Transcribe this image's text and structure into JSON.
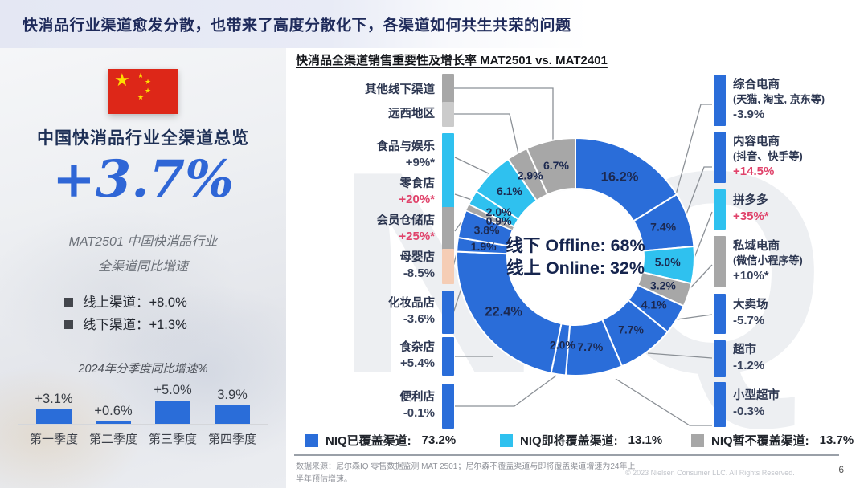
{
  "header": {
    "title": "快消品行业渠道愈发分散，也带来了高度分散化下，各渠道如何共生共荣的问题"
  },
  "watermark": "NIQ",
  "left_panel": {
    "flag_icon": "china-flag-icon",
    "heading": "中国快消品行业全渠道总览",
    "total_growth": "+3.7%",
    "subtitle_line1": "MAT2501 中国快消品行业",
    "subtitle_line2": "全渠道同比增速",
    "bullets": [
      {
        "label": "线上渠道：",
        "value": "+8.0%"
      },
      {
        "label": "线下渠道：",
        "value": "+1.3%"
      }
    ],
    "quarterly_title": "2024年分季度同比增速%"
  },
  "chart_title": "快消品全渠道销售重要性及增长率 MAT2501 vs. MAT2401",
  "chart_data": [
    {
      "type": "bar",
      "title": "2024年分季度同比增速%",
      "categories": [
        "第一季度",
        "第二季度",
        "第三季度",
        "第四季度"
      ],
      "values": [
        3.1,
        0.6,
        5.0,
        3.9
      ],
      "value_labels": [
        "+3.1%",
        "+0.6%",
        "+5.0%",
        "3.9%"
      ],
      "bar_color": "#2a6dd9",
      "xlabel": "",
      "ylabel": ""
    },
    {
      "type": "pie",
      "subtype": "donut",
      "title": "快消品全渠道销售重要性及增长率 MAT2501 vs. MAT2401",
      "center_lines": [
        "线下 Offline: 68%",
        "线上 Online: 32%"
      ],
      "unit": "%",
      "colors": {
        "covered": "#2a6dd9",
        "upcoming": "#2fc1ef",
        "uncovered": "#a7a7a7",
        "accent_growth": "#e0436b"
      },
      "slices": [
        {
          "name": "综合电商",
          "sub": "(天猫, 淘宝, 京东等)",
          "share": 16.2,
          "share_label": "16.2%",
          "growth": "-3.9%",
          "growth_accent": false,
          "group": "covered"
        },
        {
          "name": "内容电商",
          "sub": "(抖音、快手等)",
          "share": 7.4,
          "share_label": "7.4%",
          "growth": "+14.5%",
          "growth_accent": true,
          "group": "covered"
        },
        {
          "name": "拼多多",
          "share": 5.0,
          "share_label": "5.0%",
          "growth": "+35%*",
          "growth_accent": true,
          "group": "upcoming"
        },
        {
          "name": "私域电商",
          "sub": "(微信小程序等)",
          "share": 3.2,
          "share_label": "3.2%",
          "growth": "+10%*",
          "growth_accent": false,
          "group": "uncovered"
        },
        {
          "name": "大卖场",
          "share": 4.1,
          "share_label": "4.1%",
          "growth": "-5.7%",
          "growth_accent": false,
          "group": "covered"
        },
        {
          "name": "超市",
          "share": 7.7,
          "share_label": "7.7%",
          "growth": "-1.2%",
          "growth_accent": false,
          "group": "covered"
        },
        {
          "name": "小型超市",
          "share": 7.7,
          "share_label": "7.7%",
          "growth": "-0.3%",
          "growth_accent": false,
          "group": "covered"
        },
        {
          "name": "便利店",
          "share": 2.0,
          "share_label": "2.0%",
          "growth": "-0.1%",
          "growth_accent": false,
          "group": "covered"
        },
        {
          "name": "食杂店",
          "share": 22.4,
          "share_label": "22.4%",
          "growth": "+5.4%",
          "growth_accent": false,
          "group": "covered"
        },
        {
          "name": "化妆品店",
          "share": 1.9,
          "share_label": "1.9%",
          "growth": "-3.6%",
          "growth_accent": false,
          "group": "covered"
        },
        {
          "name": "母婴店",
          "share": 3.8,
          "share_label": "3.8%",
          "growth": "-8.5%",
          "growth_accent": false,
          "group": "covered",
          "block_color": "#f5cdb5"
        },
        {
          "name": "会员仓储店",
          "share": 0.9,
          "share_label": "0.9%",
          "growth": "+25%*",
          "growth_accent": true,
          "group": "uncovered"
        },
        {
          "name": "零食店",
          "share": 2.0,
          "share_label": "2.0%",
          "growth": "+20%*",
          "growth_accent": true,
          "group": "upcoming"
        },
        {
          "name": "食品与娱乐",
          "share": 6.1,
          "share_label": "6.1%",
          "growth": "+9%*",
          "growth_accent": false,
          "group": "upcoming"
        },
        {
          "name": "远西地区",
          "share": 2.9,
          "share_label": "2.9%",
          "growth": "",
          "growth_accent": false,
          "group": "uncovered",
          "block_color": "#cbcbcb"
        },
        {
          "name": "其他线下渠道",
          "share": 6.7,
          "share_label": "6.7%",
          "growth": "",
          "growth_accent": false,
          "group": "uncovered"
        }
      ],
      "left_label_order": [
        "其他线下渠道",
        "远西地区",
        "食品与娱乐",
        "零食店",
        "会员仓储店",
        "母婴店",
        "化妆品店",
        "食杂店",
        "便利店"
      ],
      "right_label_order": [
        "综合电商",
        "内容电商",
        "拼多多",
        "私域电商",
        "大卖场",
        "超市",
        "小型超市"
      ],
      "legend": [
        {
          "label": "NIQ已覆盖渠道:",
          "value": "73.2%",
          "group": "covered"
        },
        {
          "label": "NIQ即将覆盖渠道:",
          "value": "13.1%",
          "group": "upcoming"
        },
        {
          "label": "NIQ暂不覆盖渠道:",
          "value": "13.7%",
          "group": "uncovered"
        }
      ]
    }
  ],
  "footer": {
    "source_text": "数据来源：尼尔森IQ 零售数据监测 MAT 2501；尼尔森不覆盖渠道与即将覆盖渠道增速为24年上半年预估增速。",
    "copyright": "© 2023 Nielsen Consumer LLC. All Rights Reserved.",
    "page_number": "6"
  }
}
